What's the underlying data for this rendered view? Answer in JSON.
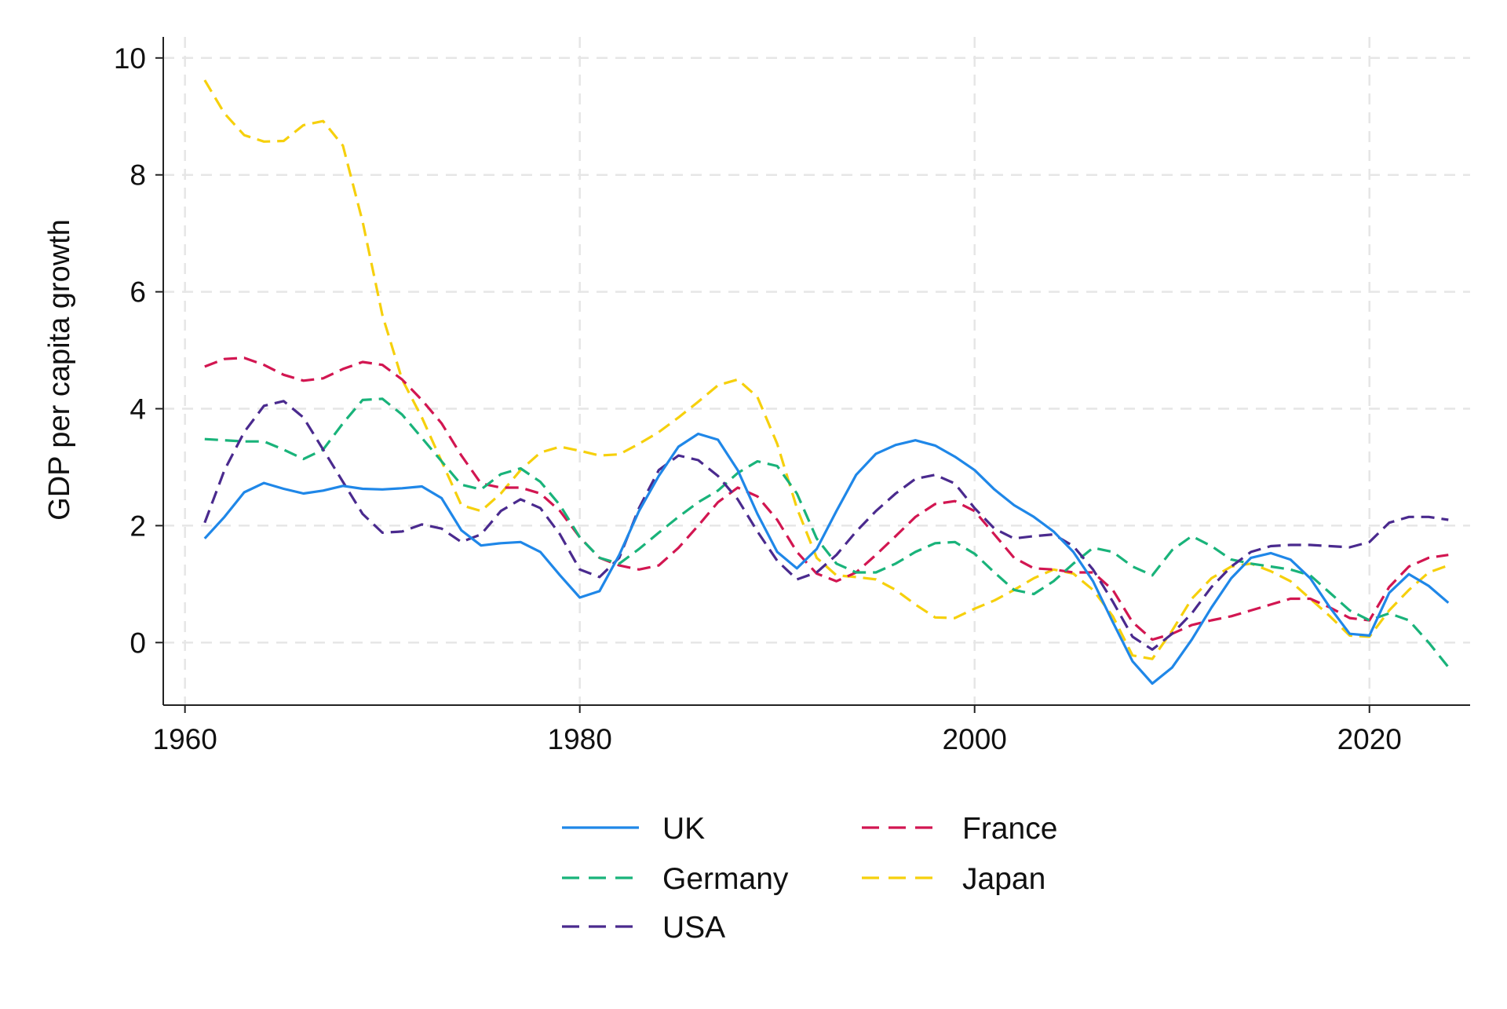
{
  "chart_data": {
    "type": "line",
    "title": "",
    "xlabel": "",
    "ylabel": "GDP per capita growth",
    "xlim": [
      1958.9,
      2025.1
    ],
    "ylim": [
      -1.07,
      10.36
    ],
    "xticks": [
      1960,
      1980,
      2000,
      2020
    ],
    "yticks": [
      0,
      2,
      4,
      6,
      8,
      10
    ],
    "grid": true,
    "legend_position": "bottom",
    "x": [
      1961,
      1962,
      1963,
      1964,
      1965,
      1966,
      1967,
      1968,
      1969,
      1970,
      1971,
      1972,
      1973,
      1974,
      1975,
      1976,
      1977,
      1978,
      1979,
      1980,
      1981,
      1982,
      1983,
      1984,
      1985,
      1986,
      1987,
      1988,
      1989,
      1990,
      1991,
      1992,
      1993,
      1994,
      1995,
      1996,
      1997,
      1998,
      1999,
      2000,
      2001,
      2002,
      2003,
      2004,
      2005,
      2006,
      2007,
      2008,
      2009,
      2010,
      2011,
      2012,
      2013,
      2014,
      2015,
      2016,
      2017,
      2018,
      2019,
      2020,
      2021,
      2022,
      2023,
      2024
    ],
    "series": [
      {
        "name": "UK",
        "color": "#1f87e8",
        "dash": "solid",
        "values": [
          1.78,
          2.15,
          2.57,
          2.73,
          2.63,
          2.55,
          2.6,
          2.68,
          2.63,
          2.62,
          2.64,
          2.67,
          2.47,
          1.92,
          1.66,
          1.7,
          1.72,
          1.55,
          1.15,
          0.77,
          0.88,
          1.5,
          2.25,
          2.85,
          3.35,
          3.57,
          3.47,
          2.95,
          2.2,
          1.55,
          1.27,
          1.6,
          2.25,
          2.87,
          3.23,
          3.38,
          3.46,
          3.37,
          3.18,
          2.95,
          2.62,
          2.35,
          2.15,
          1.9,
          1.55,
          1.05,
          0.35,
          -0.32,
          -0.7,
          -0.43,
          0.05,
          0.6,
          1.1,
          1.45,
          1.53,
          1.42,
          1.1,
          0.6,
          0.15,
          0.12,
          0.85,
          1.17,
          0.97,
          0.68
        ]
      },
      {
        "name": "Germany",
        "color": "#19b37a",
        "dash": "dashed",
        "values": [
          3.48,
          3.46,
          3.44,
          3.44,
          3.3,
          3.14,
          3.3,
          3.75,
          4.15,
          4.17,
          3.9,
          3.5,
          3.1,
          2.7,
          2.62,
          2.88,
          2.98,
          2.75,
          2.35,
          1.8,
          1.45,
          1.35,
          1.6,
          1.88,
          2.15,
          2.4,
          2.6,
          2.9,
          3.1,
          3.02,
          2.55,
          1.78,
          1.35,
          1.2,
          1.2,
          1.35,
          1.55,
          1.7,
          1.72,
          1.52,
          1.2,
          0.9,
          0.83,
          1.05,
          1.35,
          1.62,
          1.55,
          1.3,
          1.15,
          1.58,
          1.82,
          1.65,
          1.42,
          1.35,
          1.3,
          1.25,
          1.15,
          0.85,
          0.55,
          0.38,
          0.5,
          0.38,
          0.0,
          -0.42
        ]
      },
      {
        "name": "USA",
        "color": "#4a2a8e",
        "dash": "dashed",
        "values": [
          2.05,
          2.95,
          3.6,
          4.05,
          4.13,
          3.85,
          3.3,
          2.75,
          2.2,
          1.88,
          1.9,
          2.02,
          1.95,
          1.72,
          1.85,
          2.25,
          2.45,
          2.3,
          1.85,
          1.25,
          1.12,
          1.45,
          2.3,
          2.95,
          3.2,
          3.12,
          2.85,
          2.45,
          1.9,
          1.4,
          1.08,
          1.2,
          1.5,
          1.9,
          2.25,
          2.55,
          2.8,
          2.87,
          2.72,
          2.3,
          1.95,
          1.78,
          1.82,
          1.85,
          1.65,
          1.25,
          0.7,
          0.1,
          -0.12,
          0.15,
          0.5,
          0.95,
          1.3,
          1.55,
          1.65,
          1.67,
          1.67,
          1.65,
          1.63,
          1.72,
          2.05,
          2.15,
          2.15,
          2.1
        ]
      },
      {
        "name": "France",
        "color": "#d21651",
        "dash": "dashed",
        "values": [
          4.72,
          4.85,
          4.87,
          4.75,
          4.58,
          4.48,
          4.52,
          4.68,
          4.8,
          4.75,
          4.5,
          4.15,
          3.75,
          3.2,
          2.72,
          2.65,
          2.65,
          2.55,
          2.25,
          1.8,
          1.45,
          1.32,
          1.25,
          1.32,
          1.62,
          2.0,
          2.4,
          2.65,
          2.5,
          2.1,
          1.55,
          1.18,
          1.05,
          1.2,
          1.5,
          1.82,
          2.15,
          2.37,
          2.42,
          2.25,
          1.85,
          1.45,
          1.27,
          1.25,
          1.2,
          1.2,
          0.9,
          0.35,
          0.05,
          0.15,
          0.3,
          0.38,
          0.45,
          0.55,
          0.65,
          0.75,
          0.75,
          0.6,
          0.42,
          0.38,
          0.95,
          1.3,
          1.45,
          1.5
        ]
      },
      {
        "name": "Japan",
        "color": "#f6d00c",
        "dash": "dashed",
        "values": [
          9.62,
          9.05,
          8.68,
          8.57,
          8.58,
          8.85,
          8.92,
          8.5,
          7.2,
          5.6,
          4.5,
          3.85,
          3.1,
          2.35,
          2.25,
          2.55,
          2.95,
          3.25,
          3.35,
          3.28,
          3.2,
          3.22,
          3.4,
          3.6,
          3.85,
          4.12,
          4.4,
          4.5,
          4.2,
          3.4,
          2.3,
          1.45,
          1.15,
          1.12,
          1.08,
          0.9,
          0.65,
          0.43,
          0.42,
          0.58,
          0.72,
          0.9,
          1.1,
          1.25,
          1.18,
          0.9,
          0.45,
          -0.22,
          -0.28,
          0.2,
          0.75,
          1.1,
          1.3,
          1.35,
          1.22,
          1.05,
          0.75,
          0.45,
          0.12,
          0.1,
          0.55,
          0.9,
          1.2,
          1.32
        ]
      }
    ]
  }
}
